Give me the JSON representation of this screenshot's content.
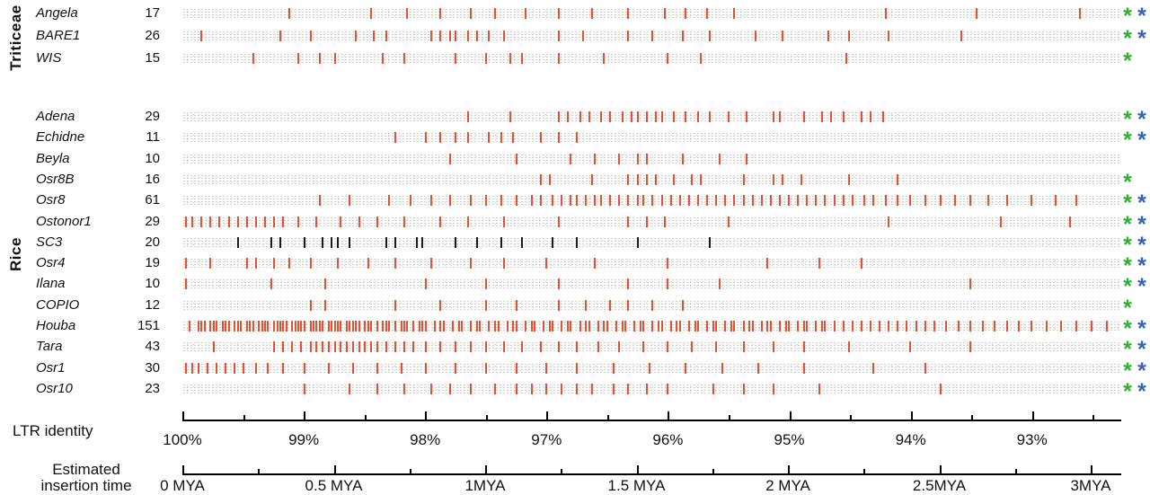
{
  "groups": [
    {
      "name": "Triticeae"
    },
    {
      "name": "Rice"
    }
  ],
  "axes": {
    "identity": {
      "label": "LTR identity",
      "tick_values": [
        100,
        99,
        98,
        97,
        96,
        95,
        94,
        93
      ],
      "tick_labels": [
        "100%",
        "99%",
        "98%",
        "97%",
        "96%",
        "95%",
        "94%",
        "93%"
      ]
    },
    "time": {
      "label_line1": "Estimated",
      "label_line2": "insertion time",
      "tick_values": [
        0,
        0.5,
        1,
        1.5,
        2,
        2.5,
        3
      ],
      "tick_labels": [
        "0 MYA",
        "0.5 MYA",
        "1MYA",
        "1.5 MYA",
        "2 MYA",
        "2.5MYA",
        "3MYA"
      ]
    }
  },
  "chart_data": {
    "type": "scatter",
    "subtype": "rug-tracks",
    "x_unit": "MYA",
    "x_range": [
      0,
      3.1
    ],
    "identity_range_pct": [
      100,
      93
    ],
    "colors": {
      "red": "#e25233",
      "black": "#1c1c1c",
      "asterisk_green": "#2fae2f",
      "asterisk_blue": "#3465b4",
      "axis": "#000000"
    },
    "rows": [
      {
        "group": "Triticeae",
        "name": "Angela",
        "count": 17,
        "color": "red",
        "asterisks": [
          "green",
          "blue"
        ],
        "positions_mya": [
          0.35,
          0.62,
          0.74,
          0.85,
          0.95,
          1.03,
          1.13,
          1.24,
          1.35,
          1.47,
          1.59,
          1.66,
          1.73,
          1.82,
          2.32,
          2.62,
          2.96
        ]
      },
      {
        "group": "Triticeae",
        "name": "BARE1",
        "count": 26,
        "color": "red",
        "asterisks": [
          "green",
          "blue"
        ],
        "positions_mya": [
          0.06,
          0.32,
          0.42,
          0.57,
          0.63,
          0.67,
          0.82,
          0.85,
          0.88,
          0.9,
          0.94,
          0.97,
          1.01,
          1.06,
          1.24,
          1.32,
          1.47,
          1.55,
          1.65,
          1.74,
          1.89,
          1.98,
          2.13,
          2.2,
          2.33,
          2.57
        ]
      },
      {
        "group": "Triticeae",
        "name": "WIS",
        "count": 15,
        "color": "red",
        "asterisks": [
          "green"
        ],
        "positions_mya": [
          0.23,
          0.38,
          0.45,
          0.5,
          0.66,
          0.73,
          0.9,
          1.0,
          1.08,
          1.12,
          1.24,
          1.39,
          1.6,
          1.71,
          2.19
        ]
      },
      {
        "group": "Rice",
        "name": "Adena",
        "count": 29,
        "color": "red",
        "asterisks": [
          "green",
          "blue"
        ],
        "positions_mya": [
          0.94,
          1.08,
          1.24,
          1.27,
          1.31,
          1.34,
          1.38,
          1.41,
          1.45,
          1.48,
          1.5,
          1.53,
          1.56,
          1.58,
          1.62,
          1.66,
          1.7,
          1.74,
          1.8,
          1.86,
          1.95,
          1.97,
          2.05,
          2.11,
          2.14,
          2.18,
          2.24,
          2.27,
          2.31
        ]
      },
      {
        "group": "Rice",
        "name": "Echidne",
        "count": 11,
        "color": "red",
        "asterisks": [
          "green",
          "blue"
        ],
        "positions_mya": [
          0.7,
          0.8,
          0.85,
          0.9,
          0.94,
          1.01,
          1.05,
          1.09,
          1.18,
          1.24,
          1.3
        ]
      },
      {
        "group": "Rice",
        "name": "Beyla",
        "count": 10,
        "color": "red",
        "asterisks": [],
        "positions_mya": [
          0.88,
          1.1,
          1.28,
          1.36,
          1.44,
          1.5,
          1.53,
          1.65,
          1.77,
          1.86
        ]
      },
      {
        "group": "Rice",
        "name": "Osr8B",
        "count": 16,
        "color": "red",
        "asterisks": [
          "green"
        ],
        "positions_mya": [
          1.18,
          1.21,
          1.35,
          1.47,
          1.5,
          1.53,
          1.56,
          1.62,
          1.68,
          1.71,
          1.85,
          1.95,
          1.98,
          2.04,
          2.2,
          2.36
        ]
      },
      {
        "group": "Rice",
        "name": "Osr8",
        "count": 61,
        "color": "red",
        "asterisks": [
          "green",
          "blue"
        ],
        "positions_mya": [
          0.45,
          0.55,
          0.68,
          0.75,
          0.82,
          0.88,
          0.95,
          1.0,
          1.05,
          1.1,
          1.15,
          1.18,
          1.22,
          1.25,
          1.28,
          1.3,
          1.33,
          1.36,
          1.38,
          1.41,
          1.44,
          1.47,
          1.5,
          1.52,
          1.55,
          1.58,
          1.61,
          1.64,
          1.67,
          1.7,
          1.73,
          1.76,
          1.79,
          1.82,
          1.85,
          1.88,
          1.91,
          1.94,
          1.97,
          2.0,
          2.03,
          2.06,
          2.09,
          2.12,
          2.15,
          2.18,
          2.21,
          2.25,
          2.28,
          2.32,
          2.36,
          2.4,
          2.45,
          2.5,
          2.55,
          2.6,
          2.66,
          2.72,
          2.8,
          2.88,
          2.95
        ]
      },
      {
        "group": "Rice",
        "name": "Ostonor1",
        "count": 29,
        "color": "red",
        "asterisks": [
          "green",
          "blue"
        ],
        "positions_mya": [
          0.01,
          0.03,
          0.06,
          0.09,
          0.12,
          0.15,
          0.18,
          0.21,
          0.24,
          0.27,
          0.3,
          0.33,
          0.38,
          0.44,
          0.52,
          0.58,
          0.64,
          0.73,
          0.85,
          0.94,
          1.06,
          1.24,
          1.47,
          1.53,
          1.59,
          1.8,
          2.33,
          2.7,
          2.93
        ]
      },
      {
        "group": "Rice",
        "name": "SC3",
        "count": 20,
        "color": "black",
        "asterisks": [
          "green",
          "blue"
        ],
        "positions_mya": [
          0.18,
          0.29,
          0.32,
          0.4,
          0.46,
          0.49,
          0.51,
          0.55,
          0.67,
          0.7,
          0.77,
          0.79,
          0.9,
          0.97,
          1.05,
          1.12,
          1.22,
          1.3,
          1.5,
          1.74
        ]
      },
      {
        "group": "Rice",
        "name": "Osr4",
        "count": 19,
        "color": "red",
        "asterisks": [
          "green",
          "blue"
        ],
        "positions_mya": [
          0.01,
          0.09,
          0.21,
          0.24,
          0.3,
          0.35,
          0.42,
          0.51,
          0.61,
          0.7,
          0.82,
          0.95,
          1.06,
          1.2,
          1.36,
          1.6,
          1.93,
          2.1,
          2.24
        ]
      },
      {
        "group": "Rice",
        "name": "Ilana",
        "count": 10,
        "color": "red",
        "asterisks": [
          "green",
          "blue"
        ],
        "positions_mya": [
          0.01,
          0.29,
          0.47,
          0.8,
          1.0,
          1.24,
          1.47,
          1.6,
          1.77,
          2.6
        ]
      },
      {
        "group": "Rice",
        "name": "COPIO",
        "count": 12,
        "color": "red",
        "asterisks": [
          "green"
        ],
        "positions_mya": [
          0.42,
          0.47,
          0.7,
          0.85,
          1.0,
          1.1,
          1.24,
          1.33,
          1.41,
          1.47,
          1.55,
          1.65
        ]
      },
      {
        "group": "Rice",
        "name": "Houba",
        "count": 151,
        "color": "red",
        "asterisks": [
          "green",
          "blue"
        ],
        "positions_mya": [
          0.02,
          0.05,
          0.07,
          0.09,
          0.11,
          0.13,
          0.15,
          0.17,
          0.19,
          0.21,
          0.23,
          0.25,
          0.27,
          0.28,
          0.3,
          0.31,
          0.33,
          0.34,
          0.36,
          0.37,
          0.39,
          0.4,
          0.42,
          0.43,
          0.45,
          0.46,
          0.48,
          0.49,
          0.51,
          0.52,
          0.54,
          0.55,
          0.57,
          0.58,
          0.6,
          0.62,
          0.64,
          0.66,
          0.68,
          0.7,
          0.72,
          0.74,
          0.76,
          0.78,
          0.8,
          0.83,
          0.86,
          0.89,
          0.92,
          0.95,
          0.98,
          1.01,
          1.04,
          1.07,
          1.1,
          1.13,
          1.16,
          1.19,
          1.22,
          1.25,
          1.28,
          1.31,
          1.34,
          1.37,
          1.4,
          1.43,
          1.46,
          1.49,
          1.52,
          1.55,
          1.58,
          1.61,
          1.64,
          1.67,
          1.7,
          1.73,
          1.76,
          1.79,
          1.82,
          1.85,
          1.88,
          1.91,
          1.94,
          1.97,
          2.0,
          2.03,
          2.06,
          2.09,
          2.12,
          2.15,
          2.18,
          2.21,
          2.24,
          2.27,
          2.3,
          2.33,
          2.36,
          2.39,
          2.42,
          2.45,
          2.48,
          2.52,
          2.56,
          2.6,
          2.64,
          2.68,
          2.72,
          2.76,
          2.8,
          2.85,
          2.9,
          2.95,
          3.0,
          3.05,
          0.06,
          0.1,
          0.14,
          0.18,
          0.22,
          0.26,
          0.32,
          0.38,
          0.44,
          0.5,
          0.56,
          0.61,
          0.67,
          0.73,
          0.79,
          0.85,
          0.91,
          0.97,
          1.03,
          1.09,
          1.15,
          1.21,
          1.27,
          1.33,
          1.39,
          1.45,
          1.51,
          1.57,
          1.63,
          1.69,
          1.75,
          1.81,
          1.87,
          1.93,
          1.99,
          2.05,
          2.11
        ]
      },
      {
        "group": "Rice",
        "name": "Tara",
        "count": 43,
        "color": "red",
        "asterisks": [
          "green",
          "blue"
        ],
        "positions_mya": [
          0.1,
          0.3,
          0.33,
          0.36,
          0.39,
          0.42,
          0.44,
          0.46,
          0.48,
          0.5,
          0.52,
          0.54,
          0.56,
          0.58,
          0.6,
          0.62,
          0.64,
          0.67,
          0.7,
          0.73,
          0.76,
          0.8,
          0.85,
          0.9,
          0.95,
          1.0,
          1.06,
          1.12,
          1.18,
          1.24,
          1.3,
          1.37,
          1.44,
          1.52,
          1.6,
          1.68,
          1.76,
          1.85,
          1.95,
          2.05,
          2.2,
          2.4,
          2.6
        ]
      },
      {
        "group": "Rice",
        "name": "Osr1",
        "count": 30,
        "color": "red",
        "asterisks": [
          "green",
          "blue"
        ],
        "positions_mya": [
          0.01,
          0.03,
          0.05,
          0.08,
          0.11,
          0.14,
          0.17,
          0.2,
          0.24,
          0.28,
          0.33,
          0.4,
          0.48,
          0.56,
          0.64,
          0.72,
          0.8,
          0.9,
          1.0,
          1.1,
          1.2,
          1.3,
          1.42,
          1.54,
          1.66,
          1.78,
          1.9,
          2.05,
          2.28,
          2.45
        ]
      },
      {
        "group": "Rice",
        "name": "Osr10",
        "count": 23,
        "color": "red",
        "asterisks": [
          "green",
          "blue"
        ],
        "positions_mya": [
          0.4,
          0.55,
          0.64,
          0.73,
          0.82,
          0.88,
          0.95,
          1.03,
          1.1,
          1.15,
          1.2,
          1.25,
          1.3,
          1.35,
          1.42,
          1.47,
          1.53,
          1.6,
          1.75,
          1.85,
          1.95,
          2.1,
          2.5
        ]
      }
    ]
  }
}
